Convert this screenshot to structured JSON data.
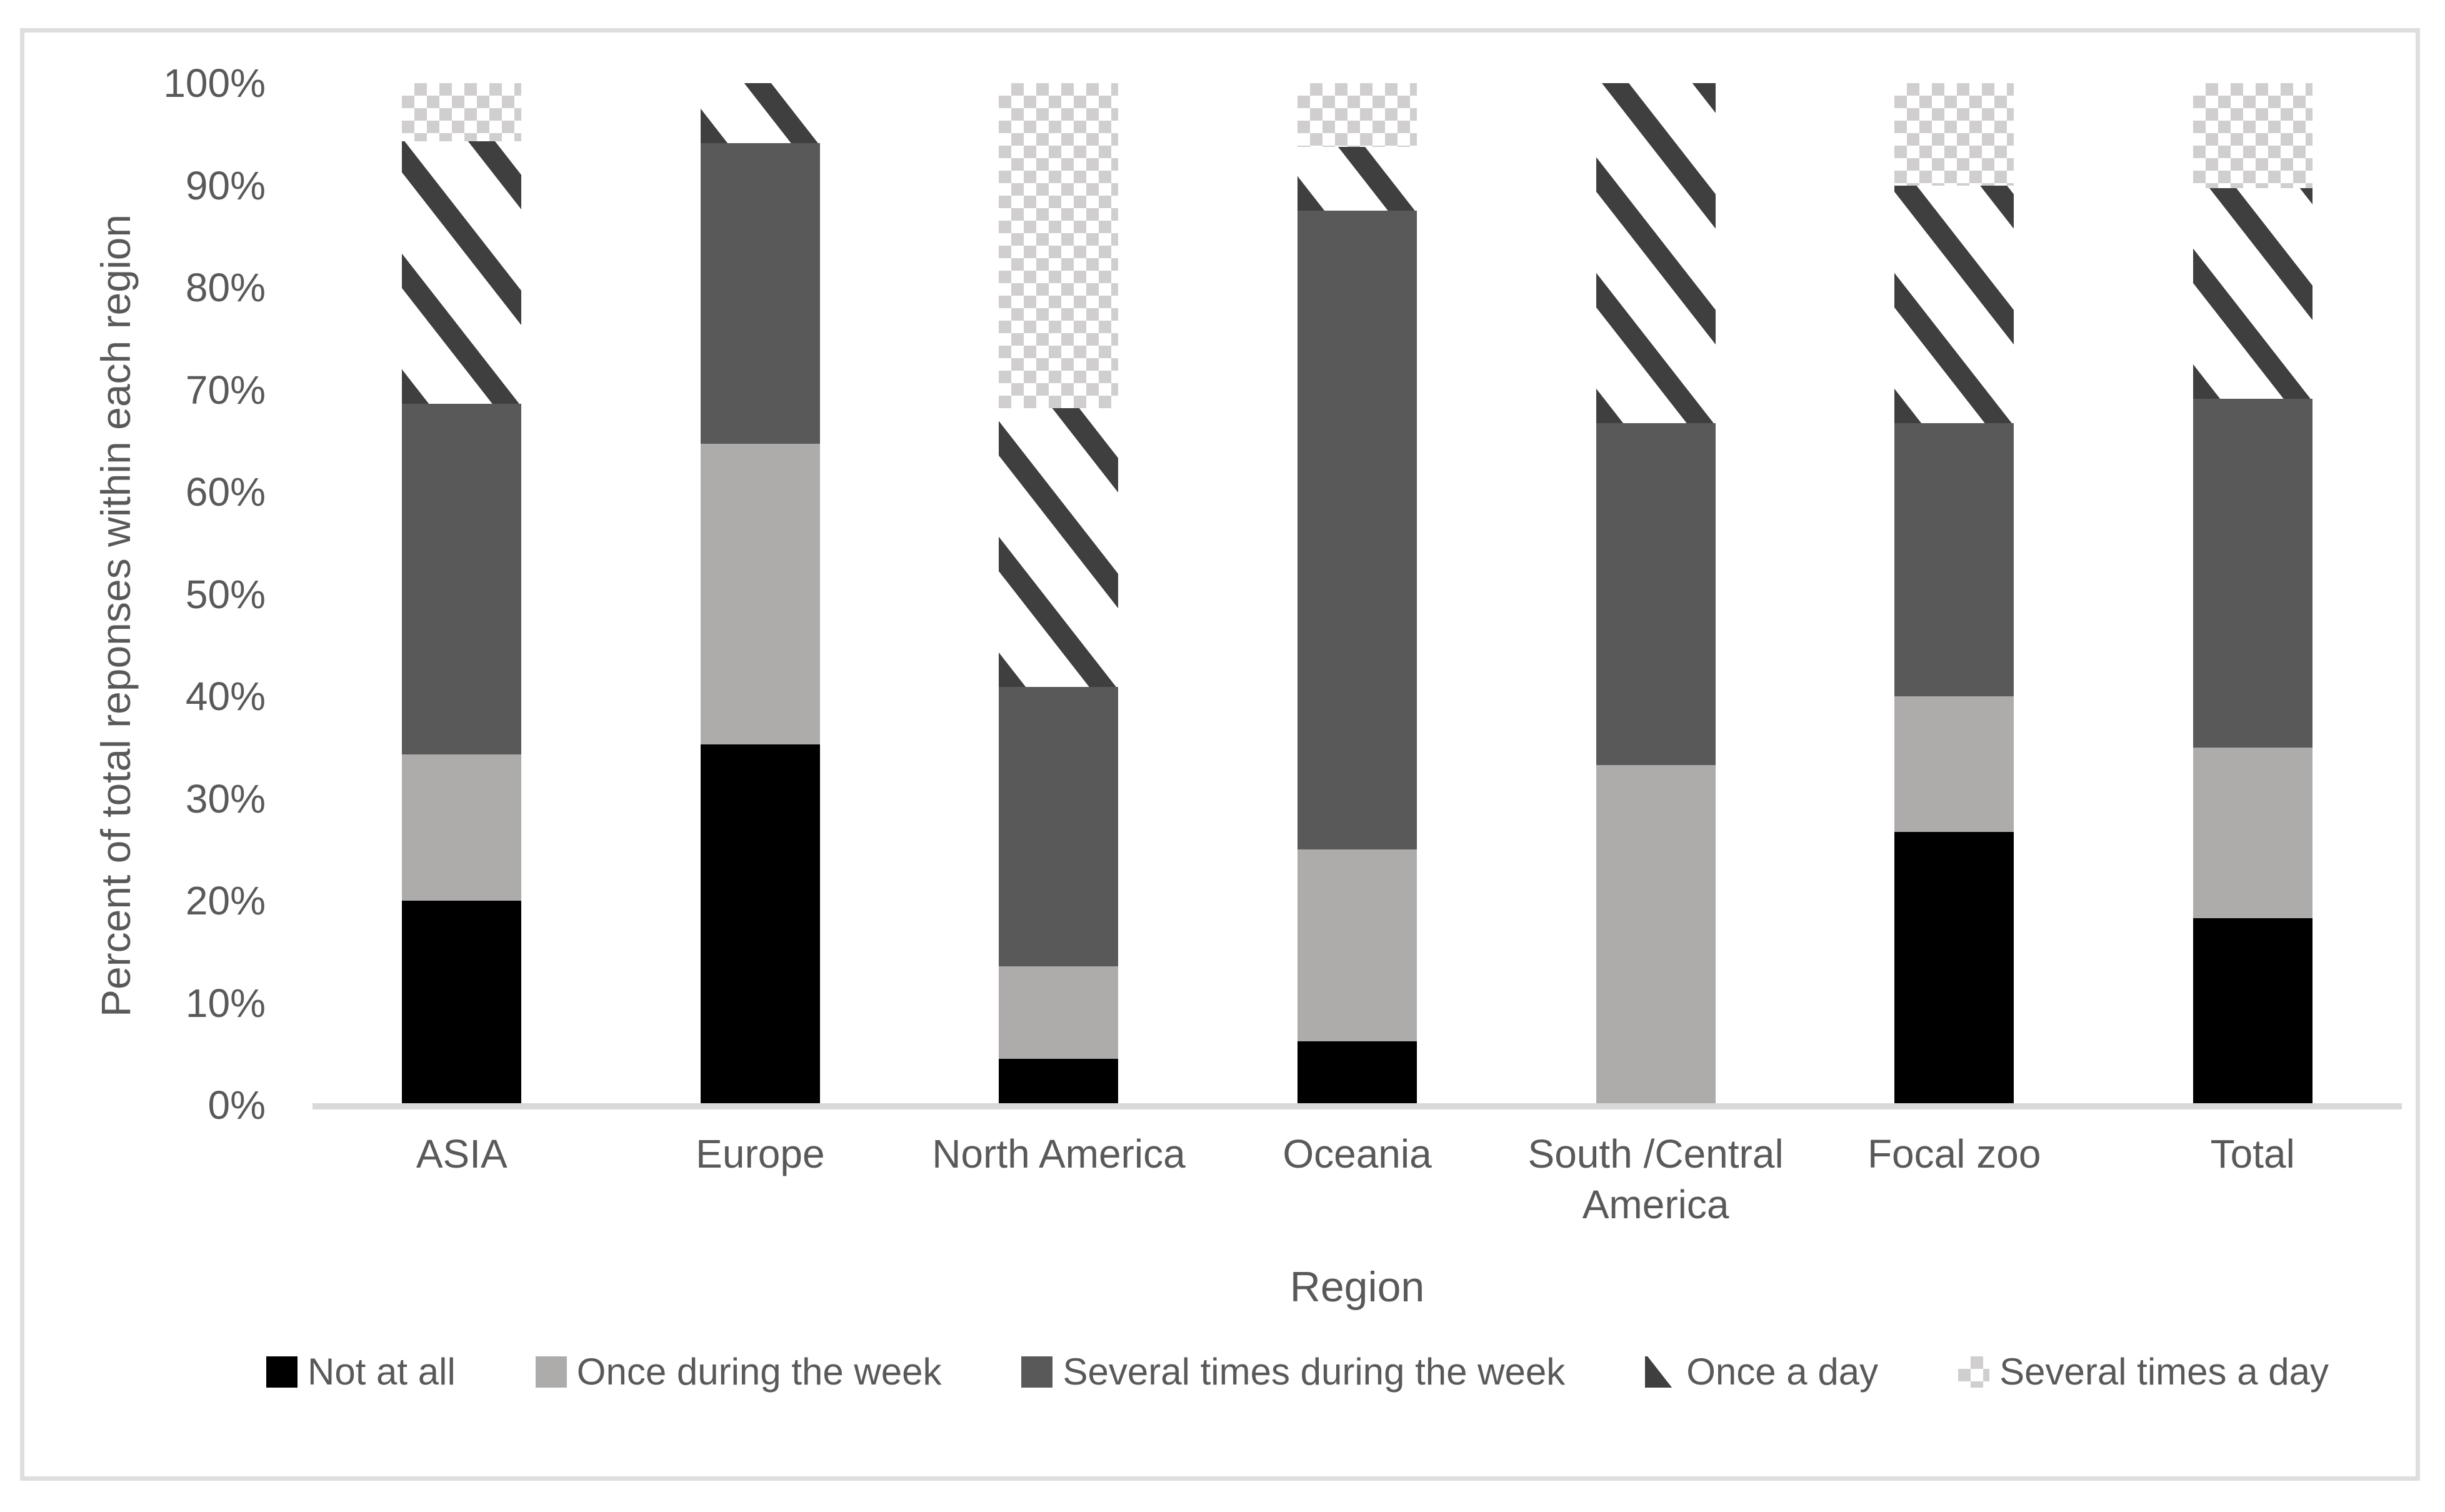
{
  "colors": {
    "black_series": "#000000",
    "light_gray_series": "#aeabab",
    "dark_gray_series": "#595959",
    "hatch_stripe": "#3f3f3f",
    "checker": "#d0cece",
    "axis_line": "#d9d9d9",
    "frame_border": "#dedede",
    "text": "#595959"
  },
  "chart_data": {
    "type": "bar",
    "stacked": true,
    "units": "percent",
    "xlabel": "Region",
    "ylabel": "Percent of total reponses within each region",
    "ylim": [
      0,
      100
    ],
    "grid": false,
    "legend_position": "bottom",
    "y_ticks": [
      "0%",
      "10%",
      "20%",
      "30%",
      "40%",
      "50%",
      "60%",
      "70%",
      "80%",
      "90%",
      "100%"
    ],
    "categories": [
      "ASIA",
      "Europe",
      "North America",
      "Oceania",
      "South /Central America",
      "Focal zoo",
      "Total"
    ],
    "series": [
      {
        "name": "Not at all",
        "pattern": "solid-black",
        "values": [
          20.0,
          35.3,
          4.5,
          6.25,
          0.0,
          26.7,
          18.3
        ]
      },
      {
        "name": "Once during the week",
        "pattern": "solid-lightgray",
        "values": [
          14.3,
          29.4,
          9.1,
          18.75,
          33.3,
          13.3,
          16.7
        ]
      },
      {
        "name": "Several times during the week",
        "pattern": "solid-darkgray",
        "values": [
          34.3,
          29.4,
          27.3,
          62.5,
          33.4,
          26.7,
          34.1
        ]
      },
      {
        "name": "Once a day",
        "pattern": "diagonal-hatch",
        "values": [
          25.7,
          5.9,
          27.3,
          6.25,
          33.3,
          23.3,
          20.6
        ]
      },
      {
        "name": "Several times a day",
        "pattern": "checkered",
        "values": [
          5.7,
          0.0,
          31.8,
          6.25,
          0.0,
          10.0,
          10.3
        ]
      }
    ]
  }
}
